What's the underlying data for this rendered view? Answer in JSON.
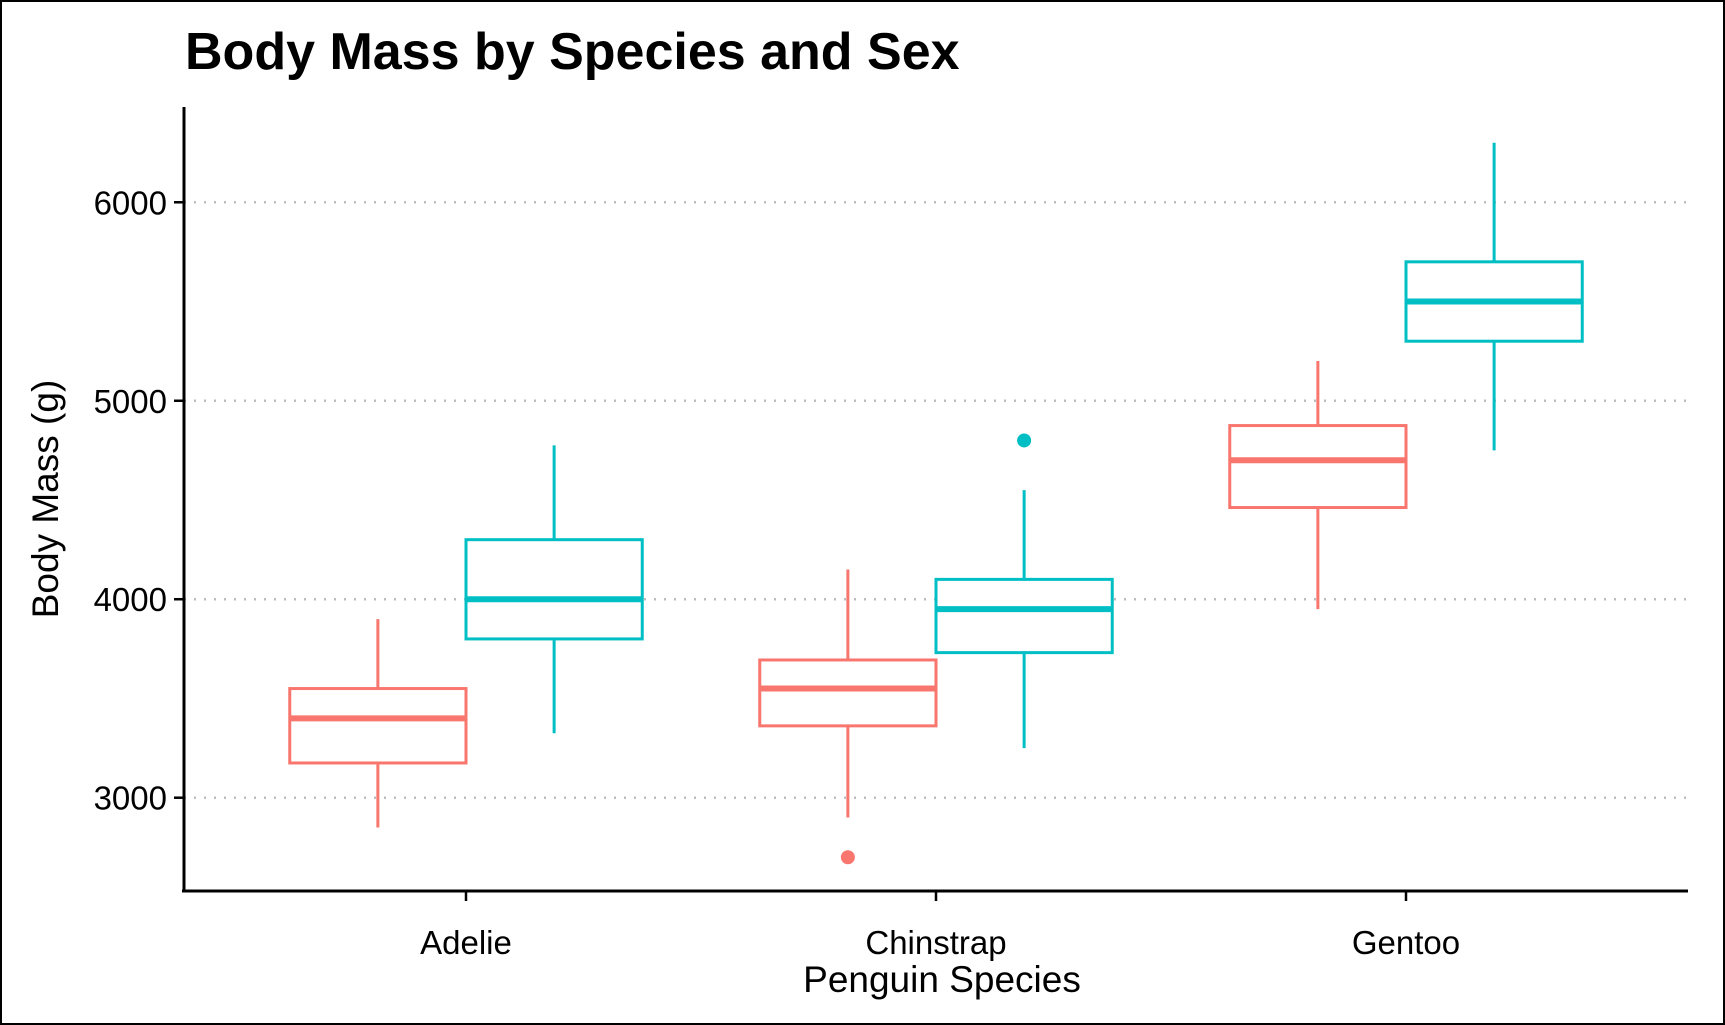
{
  "chart_data": {
    "type": "boxplot",
    "title": "Body Mass by Species and Sex",
    "xlabel": "Penguin Species",
    "ylabel": "Body Mass (g)",
    "categories": [
      "Adelie",
      "Chinstrap",
      "Gentoo"
    ],
    "ylim": [
      2530,
      6480
    ],
    "yticks": [
      3000,
      4000,
      5000,
      6000
    ],
    "grid": "horizontal dotted",
    "legend": "none",
    "series": [
      {
        "color": "#F8766D",
        "boxes": [
          {
            "category": "Adelie",
            "whisker_low": 2850,
            "q1": 3175,
            "median": 3400,
            "q3": 3550,
            "whisker_high": 3900,
            "outliers": []
          },
          {
            "category": "Chinstrap",
            "whisker_low": 2900,
            "q1": 3362,
            "median": 3550,
            "q3": 3694,
            "whisker_high": 4150,
            "outliers": [
              2700
            ]
          },
          {
            "category": "Gentoo",
            "whisker_low": 3950,
            "q1": 4462,
            "median": 4700,
            "q3": 4875,
            "whisker_high": 5200,
            "outliers": []
          }
        ]
      },
      {
        "color": "#00BFC4",
        "boxes": [
          {
            "category": "Adelie",
            "whisker_low": 3325,
            "q1": 3800,
            "median": 4000,
            "q3": 4300,
            "whisker_high": 4775,
            "outliers": []
          },
          {
            "category": "Chinstrap",
            "whisker_low": 3250,
            "q1": 3731,
            "median": 3950,
            "q3": 4100,
            "whisker_high": 4550,
            "outliers": [
              4800
            ]
          },
          {
            "category": "Gentoo",
            "whisker_low": 4750,
            "q1": 5300,
            "median": 5500,
            "q3": 5700,
            "whisker_high": 6300,
            "outliers": []
          }
        ]
      }
    ]
  }
}
